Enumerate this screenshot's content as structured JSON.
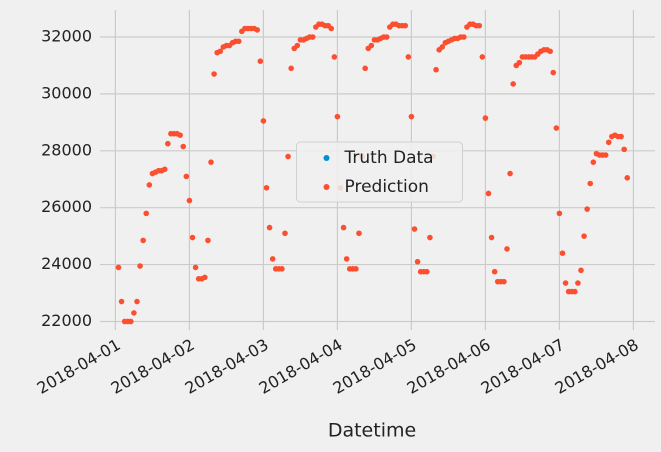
{
  "chart_data": {
    "type": "scatter",
    "x_label": "Datetime",
    "xlim": [
      -5,
      175
    ],
    "ylim": [
      21700,
      32950
    ],
    "xticks": [
      {
        "value": 0,
        "label": "2018-04-01"
      },
      {
        "value": 24,
        "label": "2018-04-02"
      },
      {
        "value": 48,
        "label": "2018-04-03"
      },
      {
        "value": 72,
        "label": "2018-04-04"
      },
      {
        "value": 96,
        "label": "2018-04-05"
      },
      {
        "value": 120,
        "label": "2018-04-06"
      },
      {
        "value": 144,
        "label": "2018-04-07"
      },
      {
        "value": 168,
        "label": "2018-04-08"
      }
    ],
    "yticks": [
      22000,
      24000,
      26000,
      28000,
      30000,
      32000
    ],
    "grid": true,
    "series": [
      {
        "name": "Truth Data",
        "color": "#008fd5",
        "x": [],
        "values": []
      },
      {
        "name": "Prediction",
        "color": "#fc4f30",
        "x": [
          1,
          2,
          3,
          4,
          5,
          6,
          7,
          8,
          9,
          10,
          11,
          12,
          13,
          14,
          15,
          16,
          17,
          18,
          19,
          20,
          21,
          22,
          23,
          24,
          25,
          26,
          27,
          28,
          29,
          30,
          31,
          32,
          33,
          34,
          35,
          36,
          37,
          38,
          39,
          40,
          41,
          42,
          43,
          44,
          45,
          46,
          47,
          48,
          49,
          50,
          51,
          52,
          53,
          54,
          55,
          56,
          57,
          58,
          59,
          60,
          61,
          62,
          63,
          64,
          65,
          66,
          67,
          68,
          69,
          70,
          71,
          72,
          73,
          74,
          75,
          76,
          77,
          78,
          79,
          80,
          81,
          82,
          83,
          84,
          85,
          86,
          87,
          88,
          89,
          90,
          91,
          92,
          93,
          94,
          95,
          96,
          97,
          98,
          99,
          100,
          101,
          102,
          103,
          104,
          105,
          106,
          107,
          108,
          109,
          110,
          111,
          112,
          113,
          114,
          115,
          116,
          117,
          118,
          119,
          120,
          121,
          122,
          123,
          124,
          125,
          126,
          127,
          128,
          129,
          130,
          131,
          132,
          133,
          134,
          135,
          136,
          137,
          138,
          139,
          140,
          141,
          142,
          143,
          144,
          145,
          146,
          147,
          148,
          149,
          150,
          151,
          152,
          153,
          154,
          155,
          156,
          157,
          158,
          159,
          160,
          161,
          162,
          163,
          164,
          165,
          166
        ],
        "values": [
          23900,
          22700,
          22000,
          22000,
          22000,
          22300,
          22700,
          23950,
          24850,
          25800,
          26800,
          27200,
          27250,
          27300,
          27300,
          27350,
          28250,
          28600,
          28600,
          28600,
          28550,
          28150,
          27100,
          26250,
          24950,
          23900,
          23500,
          23500,
          23550,
          24850,
          27600,
          30700,
          31450,
          31500,
          31650,
          31700,
          31700,
          31800,
          31850,
          31850,
          32200,
          32300,
          32300,
          32300,
          32300,
          32250,
          31150,
          29050,
          26700,
          25300,
          24200,
          23850,
          23850,
          23850,
          25100,
          27800,
          30900,
          31600,
          31700,
          31900,
          31900,
          31950,
          32000,
          32000,
          32350,
          32450,
          32450,
          32400,
          32400,
          32300,
          31300,
          29200,
          26700,
          25300,
          24200,
          23850,
          23850,
          23850,
          25100,
          27800,
          30900,
          31600,
          31700,
          31900,
          31900,
          31950,
          32000,
          32000,
          32350,
          32450,
          32450,
          32400,
          32400,
          32400,
          31300,
          29200,
          25250,
          24100,
          23750,
          23750,
          23750,
          24950,
          27800,
          30850,
          31550,
          31650,
          31800,
          31850,
          31900,
          31950,
          31950,
          32000,
          32000,
          32350,
          32450,
          32450,
          32400,
          32400,
          31300,
          29150,
          26500,
          24950,
          23750,
          23400,
          23400,
          23400,
          24550,
          27200,
          30350,
          31000,
          31100,
          31300,
          31300,
          31300,
          31300,
          31300,
          31400,
          31500,
          31550,
          31550,
          31500,
          30750,
          28800,
          25800,
          24400,
          23350,
          23050,
          23050,
          23050,
          23350,
          23800,
          25000,
          25950,
          26850,
          27600,
          27900,
          27850,
          27850,
          27850,
          28300,
          28500,
          28550,
          28500,
          28500,
          28050,
          27050
        ]
      }
    ],
    "legend": "center"
  }
}
